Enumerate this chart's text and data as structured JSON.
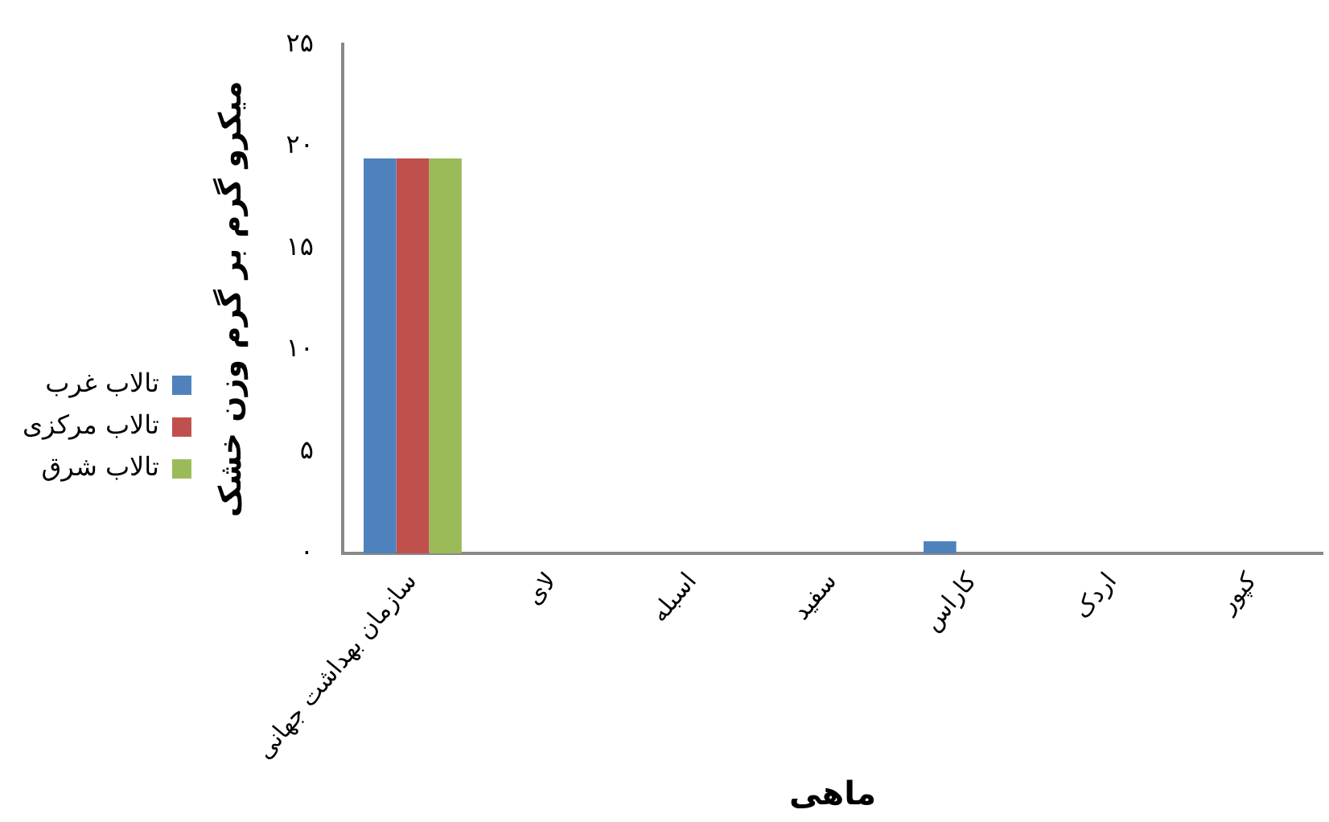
{
  "chart_data": {
    "type": "bar",
    "xlabel": "ماهی",
    "ylabel": "میکرو گرم بر گرم وزن خشک",
    "categories": [
      "سازمان بهداشت جهانی",
      "لای",
      "اسبله",
      "سفید",
      "کاراس",
      "اردک",
      "کپور"
    ],
    "series": [
      {
        "name": "تالاب غرب",
        "color": "#4f81bd",
        "values": [
          19.4,
          0,
          0,
          0,
          0.6,
          0,
          0
        ]
      },
      {
        "name": "تالاب مرکزی",
        "color": "#c0504d",
        "values": [
          19.4,
          0,
          0,
          0,
          0,
          0,
          0
        ]
      },
      {
        "name": "تالاب شرق",
        "color": "#9bbb59",
        "values": [
          19.4,
          0,
          0,
          0,
          0,
          0,
          0
        ]
      }
    ],
    "ylim": [
      0,
      25
    ],
    "yticks": [
      {
        "value": 0,
        "label": "۰"
      },
      {
        "value": 5,
        "label": "۵"
      },
      {
        "value": 10,
        "label": "۱۰"
      },
      {
        "value": 15,
        "label": "۱۵"
      },
      {
        "value": 20,
        "label": "۲۰"
      },
      {
        "value": 25,
        "label": "۲۵"
      }
    ],
    "grid": false,
    "legend": "left"
  }
}
